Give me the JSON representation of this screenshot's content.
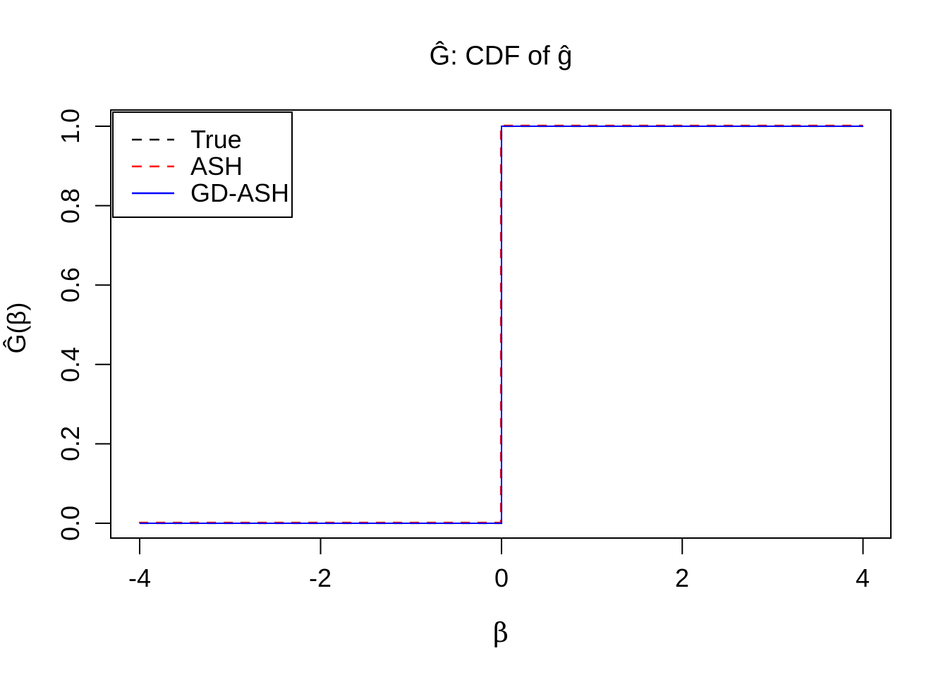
{
  "chart_data": {
    "type": "line",
    "title": "Ĝ: CDF of ĝ",
    "xlabel": "β",
    "ylabel": "Ĝ(β)",
    "xlim": [
      -4.3,
      4.3
    ],
    "ylim": [
      -0.04,
      1.04
    ],
    "grid": false,
    "legend_position": "topleft",
    "x_ticks": [
      "-4",
      "-2",
      "0",
      "2",
      "4"
    ],
    "y_ticks": [
      "0.0",
      "0.2",
      "0.4",
      "0.6",
      "0.8",
      "1.0"
    ],
    "axis_color": "#000000",
    "background_color": "#FFFFFF",
    "series": [
      {
        "name": "True",
        "color": "#000000",
        "line_style": "dashed",
        "points": [
          [
            -4,
            0
          ],
          [
            0,
            0
          ],
          [
            0,
            1
          ],
          [
            4,
            1
          ]
        ]
      },
      {
        "name": "ASH",
        "color": "#FF0000",
        "line_style": "dashed",
        "points": [
          [
            -4,
            0
          ],
          [
            0,
            0
          ],
          [
            0,
            1
          ],
          [
            4,
            1
          ]
        ]
      },
      {
        "name": "GD-ASH",
        "color": "#0000FF",
        "line_style": "solid",
        "points": [
          [
            -4,
            0
          ],
          [
            0,
            0
          ],
          [
            0,
            1
          ],
          [
            4,
            1
          ]
        ]
      }
    ]
  }
}
